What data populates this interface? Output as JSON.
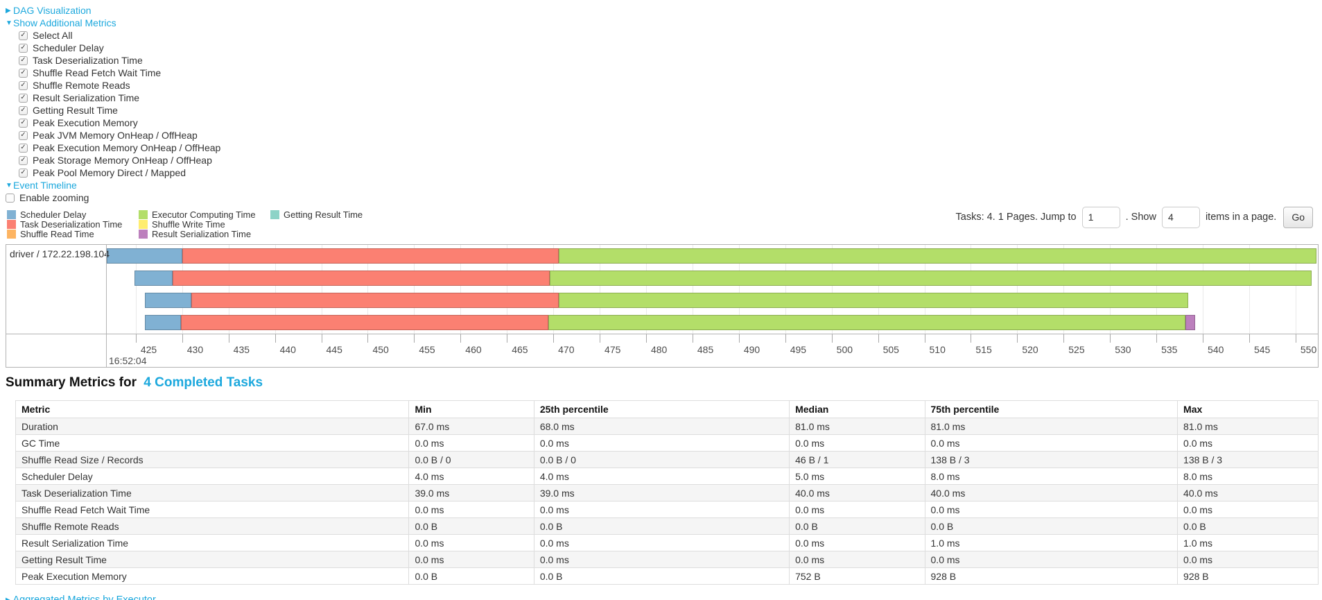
{
  "nav": {
    "dag": {
      "arrow": "▶",
      "label": "DAG Visualization"
    },
    "metrics_toggle": {
      "arrow": "▼",
      "label": "Show Additional Metrics"
    },
    "checkboxes": [
      {
        "label": "Select All",
        "checked": true
      },
      {
        "label": "Scheduler Delay",
        "checked": true
      },
      {
        "label": "Task Deserialization Time",
        "checked": true
      },
      {
        "label": "Shuffle Read Fetch Wait Time",
        "checked": true
      },
      {
        "label": "Shuffle Remote Reads",
        "checked": true
      },
      {
        "label": "Result Serialization Time",
        "checked": true
      },
      {
        "label": "Getting Result Time",
        "checked": true
      },
      {
        "label": "Peak Execution Memory",
        "checked": true
      },
      {
        "label": "Peak JVM Memory OnHeap / OffHeap",
        "checked": true
      },
      {
        "label": "Peak Execution Memory OnHeap / OffHeap",
        "checked": true
      },
      {
        "label": "Peak Storage Memory OnHeap / OffHeap",
        "checked": true
      },
      {
        "label": "Peak Pool Memory Direct / Mapped",
        "checked": true
      }
    ],
    "event_timeline_toggle": {
      "arrow": "▼",
      "label": "Event Timeline"
    },
    "enable_zooming": {
      "label": "Enable zooming",
      "checked": false
    }
  },
  "legend": {
    "items": [
      {
        "key": "scheduler_delay",
        "label": "Scheduler Delay",
        "color": "#80B1D3"
      },
      {
        "key": "task_deserialization",
        "label": "Task Deserialization Time",
        "color": "#FB8072"
      },
      {
        "key": "shuffle_read",
        "label": "Shuffle Read Time",
        "color": "#FDB462"
      },
      {
        "key": "executor_computing",
        "label": "Executor Computing Time",
        "color": "#B3DE69"
      },
      {
        "key": "shuffle_write",
        "label": "Shuffle Write Time",
        "color": "#FFED6F"
      },
      {
        "key": "result_serialization",
        "label": "Result Serialization Time",
        "color": "#BC80BD"
      },
      {
        "key": "getting_result",
        "label": "Getting Result Time",
        "color": "#8DD3C7"
      }
    ]
  },
  "pagination": {
    "prefix": "Tasks: 4. 1 Pages. Jump to",
    "jump_value": "1",
    "mid": ". Show",
    "show_value": "4",
    "suffix": "items in a page.",
    "go_label": "Go"
  },
  "chart_data": {
    "type": "timeline",
    "group_label": "driver / 172.22.198.104",
    "axis": {
      "unit": "ms",
      "domain_min": 421.8,
      "domain_max": 552.4,
      "ticks": [
        425,
        430,
        435,
        440,
        445,
        450,
        455,
        460,
        465,
        470,
        475,
        480,
        485,
        490,
        495,
        500,
        505,
        510,
        515,
        520,
        525,
        530,
        535,
        540,
        545,
        550
      ],
      "major_label": "16:52:04"
    },
    "series_colors": {
      "scheduler_delay": "#80B1D3",
      "task_deserialization": "#FB8072",
      "shuffle_read": "#FDB462",
      "executor_computing": "#B3DE69",
      "shuffle_write": "#FFED6F",
      "result_serialization": "#BC80BD",
      "getting_result": "#8DD3C7"
    },
    "tasks": [
      {
        "segments": [
          [
            "scheduler_delay",
            421.9,
            430.0
          ],
          [
            "task_deserialization",
            430.0,
            470.6
          ],
          [
            "executor_computing",
            470.6,
            552.4
          ]
        ]
      },
      {
        "segments": [
          [
            "scheduler_delay",
            424.9,
            429.0
          ],
          [
            "task_deserialization",
            429.0,
            469.6
          ],
          [
            "executor_computing",
            469.6,
            551.7
          ]
        ]
      },
      {
        "segments": [
          [
            "scheduler_delay",
            426.0,
            431.0
          ],
          [
            "task_deserialization",
            431.0,
            470.6
          ],
          [
            "executor_computing",
            470.6,
            538.4
          ]
        ]
      },
      {
        "segments": [
          [
            "scheduler_delay",
            426.0,
            429.9
          ],
          [
            "task_deserialization",
            429.9,
            469.5
          ],
          [
            "executor_computing",
            469.5,
            538.1
          ],
          [
            "result_serialization",
            538.1,
            539.2
          ]
        ]
      }
    ]
  },
  "summary": {
    "title_prefix": "Summary Metrics for",
    "title_link": "4 Completed Tasks"
  },
  "table": {
    "columns": [
      "Metric",
      "Min",
      "25th percentile",
      "Median",
      "75th percentile",
      "Max"
    ],
    "rows": [
      {
        "metric": "Duration",
        "values": [
          "67.0 ms",
          "68.0 ms",
          "81.0 ms",
          "81.0 ms",
          "81.0 ms"
        ]
      },
      {
        "metric": "GC Time",
        "values": [
          "0.0 ms",
          "0.0 ms",
          "0.0 ms",
          "0.0 ms",
          "0.0 ms"
        ]
      },
      {
        "metric": "Shuffle Read Size / Records",
        "values": [
          "0.0 B / 0",
          "0.0 B / 0",
          "46 B / 1",
          "138 B / 3",
          "138 B / 3"
        ]
      },
      {
        "metric": "Scheduler Delay",
        "values": [
          "4.0 ms",
          "4.0 ms",
          "5.0 ms",
          "8.0 ms",
          "8.0 ms"
        ]
      },
      {
        "metric": "Task Deserialization Time",
        "values": [
          "39.0 ms",
          "39.0 ms",
          "40.0 ms",
          "40.0 ms",
          "40.0 ms"
        ]
      },
      {
        "metric": "Shuffle Read Fetch Wait Time",
        "values": [
          "0.0 ms",
          "0.0 ms",
          "0.0 ms",
          "0.0 ms",
          "0.0 ms"
        ]
      },
      {
        "metric": "Shuffle Remote Reads",
        "values": [
          "0.0 B",
          "0.0 B",
          "0.0 B",
          "0.0 B",
          "0.0 B"
        ]
      },
      {
        "metric": "Result Serialization Time",
        "values": [
          "0.0 ms",
          "0.0 ms",
          "0.0 ms",
          "1.0 ms",
          "1.0 ms"
        ]
      },
      {
        "metric": "Getting Result Time",
        "values": [
          "0.0 ms",
          "0.0 ms",
          "0.0 ms",
          "0.0 ms",
          "0.0 ms"
        ]
      },
      {
        "metric": "Peak Execution Memory",
        "values": [
          "0.0 B",
          "0.0 B",
          "752 B",
          "928 B",
          "928 B"
        ]
      }
    ]
  },
  "next_section_clipped": "▸ Aggregated Metrics by Executor",
  "colors": {
    "link": "#1CA8DD",
    "stripe": "#f5f5f5",
    "border": "#dddddd",
    "chart_border": "#b3b3b3"
  }
}
